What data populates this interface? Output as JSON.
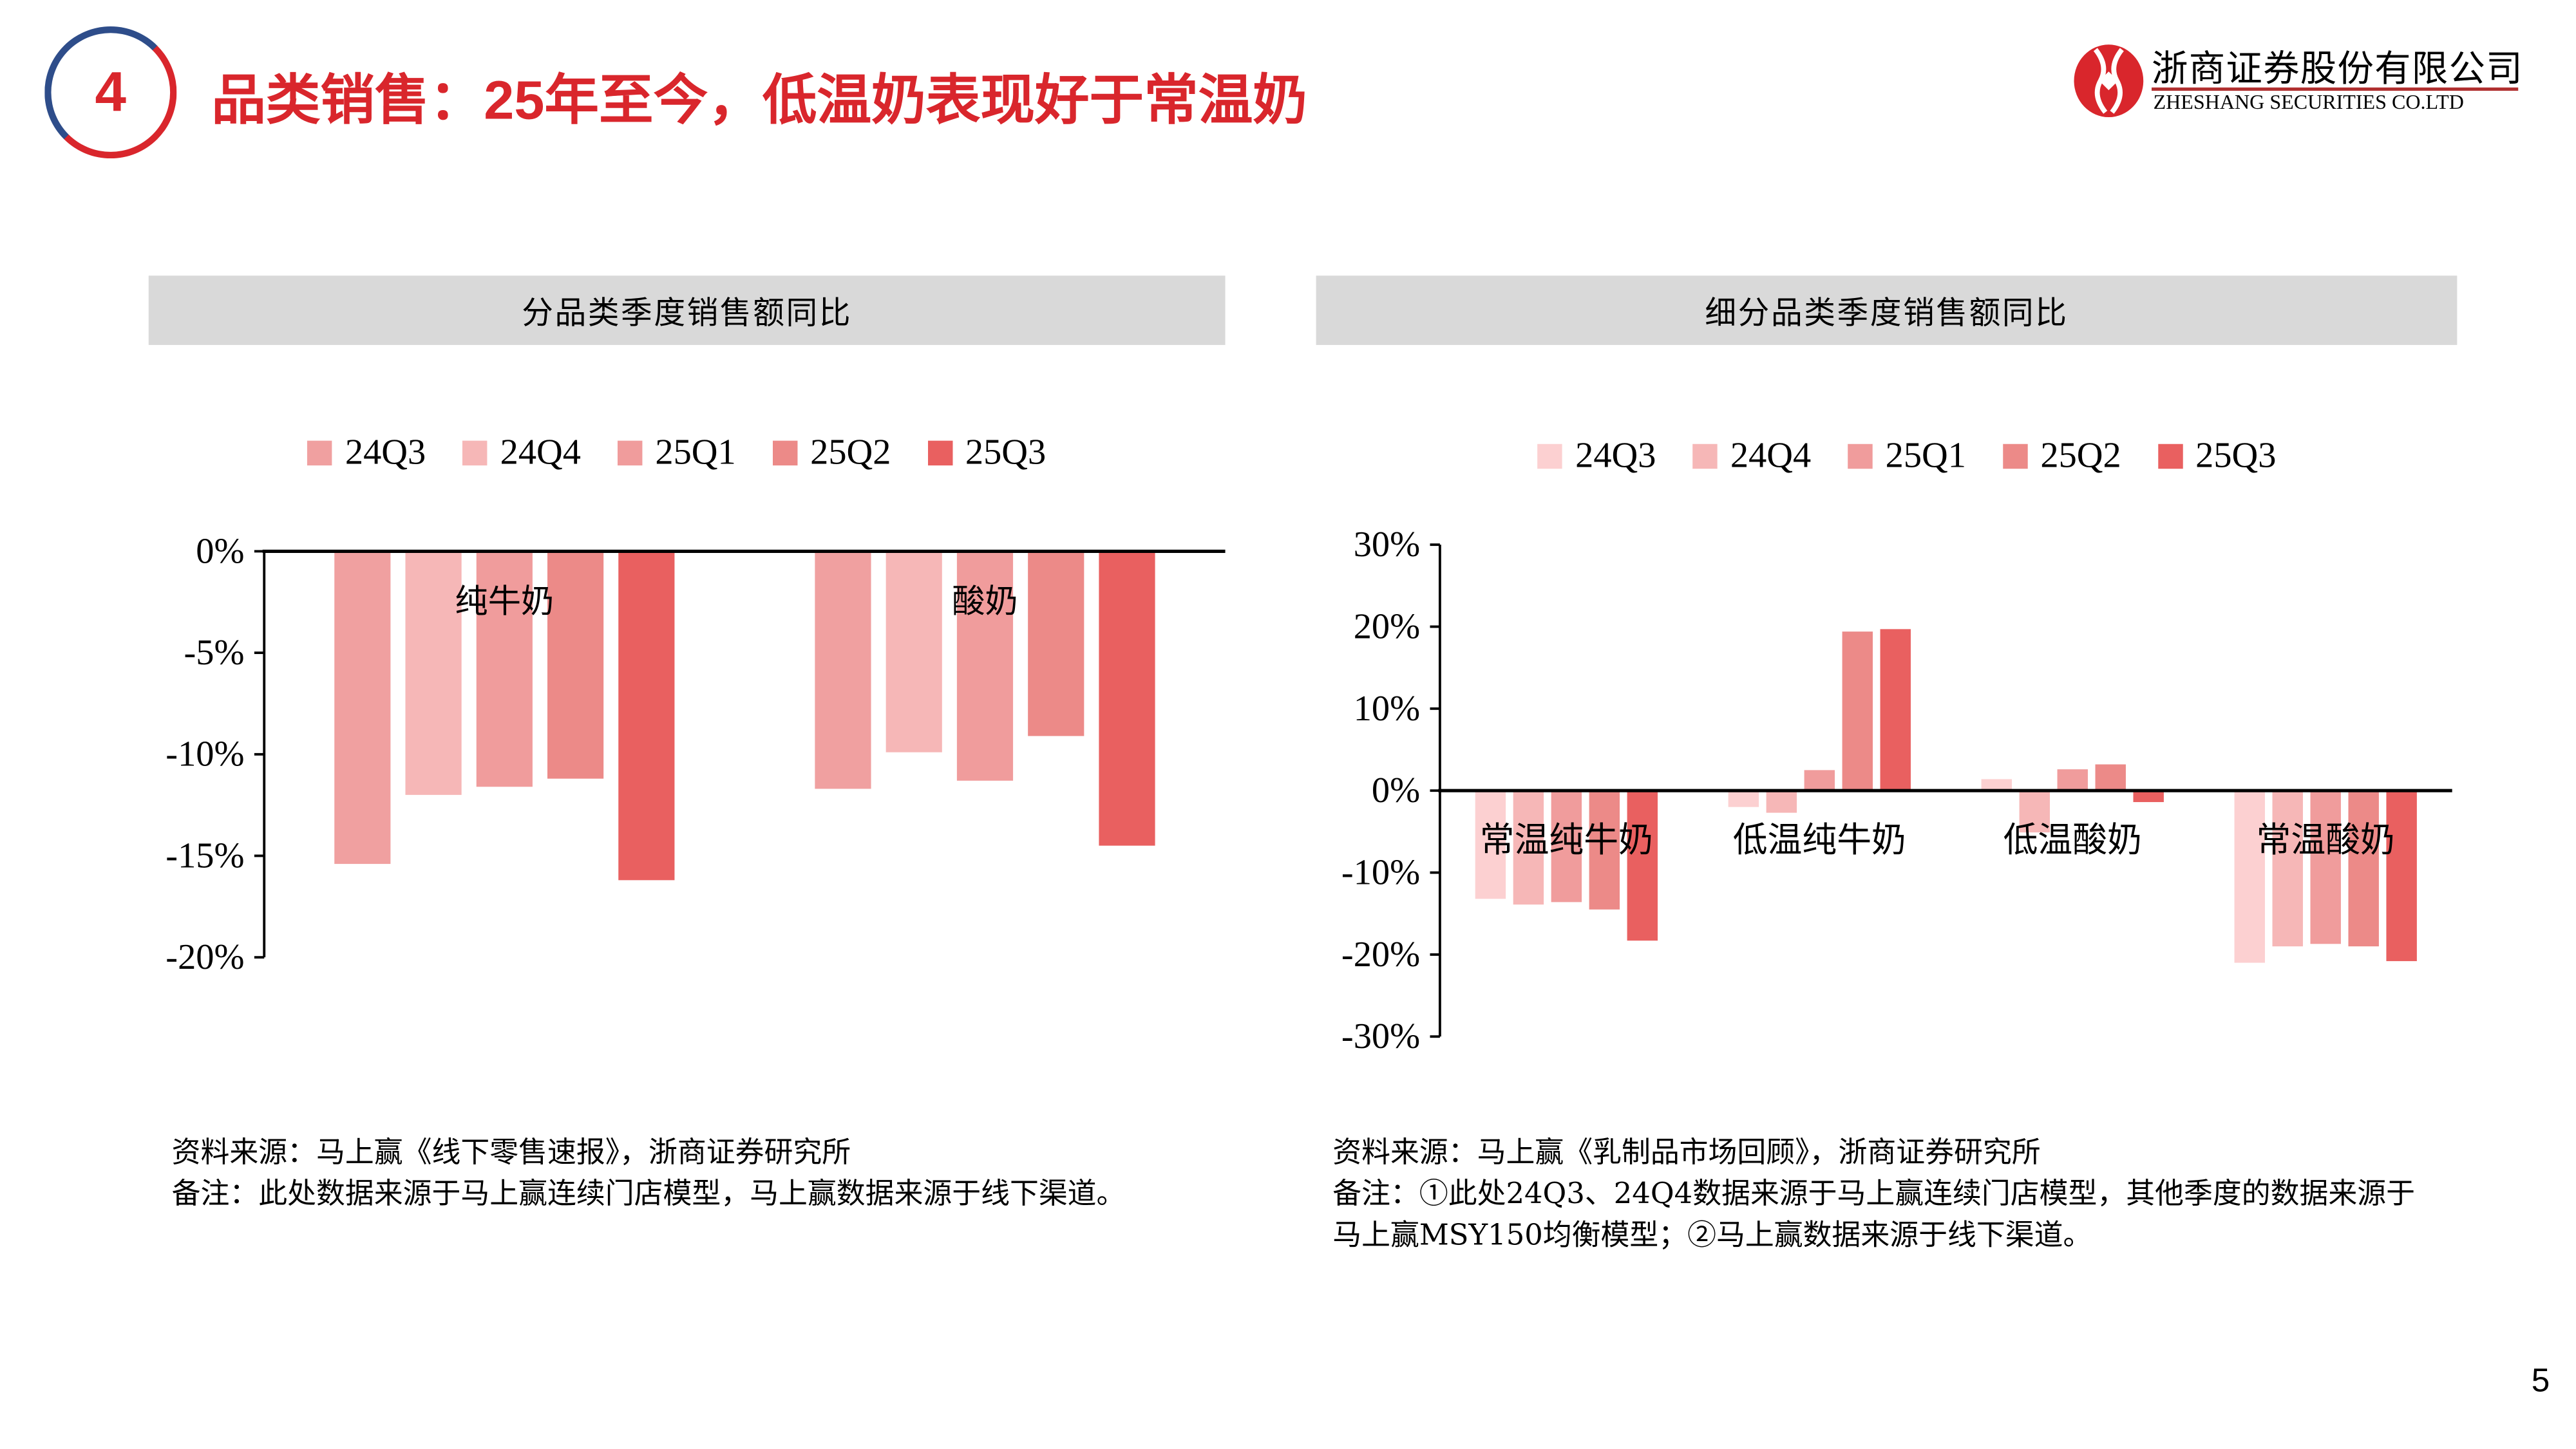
{
  "header": {
    "section_number": "4",
    "title": "品类销售：25年至今，低温奶表现好于常温奶",
    "logo_cn": "浙商证券股份有限公司",
    "logo_en": "ZHESHANG SECURITIES CO.LTD"
  },
  "colors": {
    "accent": "#d9262c",
    "navy": "#2e4d8a"
  },
  "chart_data": [
    {
      "type": "bar",
      "title": "分品类季度销售额同比",
      "categories": [
        "纯牛奶",
        "酸奶"
      ],
      "series": [
        {
          "name": "24Q3",
          "color": "#f0a0a0",
          "values": [
            -15.4,
            -11.7
          ]
        },
        {
          "name": "24Q4",
          "color": "#f6b7b7",
          "values": [
            -12.0,
            -9.9
          ]
        },
        {
          "name": "25Q1",
          "color": "#f09c9c",
          "values": [
            -11.6,
            -11.3
          ]
        },
        {
          "name": "25Q2",
          "color": "#ec8a88",
          "values": [
            -11.2,
            -9.1
          ]
        },
        {
          "name": "25Q3",
          "color": "#e96060",
          "values": [
            -16.2,
            -14.5
          ]
        }
      ],
      "yticks": [
        "0%",
        "-5%",
        "-10%",
        "-15%",
        "-20%"
      ],
      "ylim": [
        -20,
        0
      ],
      "unit": "%",
      "legend": "top",
      "grid": false
    },
    {
      "type": "bar",
      "title": "细分品类季度销售额同比",
      "categories": [
        "常温纯牛奶",
        "低温纯牛奶",
        "低温酸奶",
        "常温酸奶"
      ],
      "series": [
        {
          "name": "24Q3",
          "color": "#fcd0d1",
          "values": [
            -13.2,
            -2.0,
            1.4,
            -21.0
          ]
        },
        {
          "name": "24Q4",
          "color": "#f6b7b7",
          "values": [
            -13.9,
            -2.7,
            -5.1,
            -19.0
          ]
        },
        {
          "name": "25Q1",
          "color": "#f09c9c",
          "values": [
            -13.6,
            2.5,
            2.6,
            -18.7
          ]
        },
        {
          "name": "25Q2",
          "color": "#ec8a88",
          "values": [
            -14.5,
            19.4,
            3.2,
            -19.0
          ]
        },
        {
          "name": "25Q3",
          "color": "#e96060",
          "values": [
            -18.3,
            19.7,
            -1.4,
            -20.8
          ]
        }
      ],
      "yticks": [
        "30%",
        "20%",
        "10%",
        "0%",
        "-10%",
        "-20%",
        "-30%"
      ],
      "ylim": [
        -30,
        30
      ],
      "unit": "%",
      "legend": "top",
      "grid": false
    }
  ],
  "notes": {
    "left_source": "资料来源：马上赢《线下零售速报》，浙商证券研究所",
    "left_remark": "备注：此处数据来源于马上赢连续门店模型，马上赢数据来源于线下渠道。",
    "right_source": "资料来源：马上赢《乳制品市场回顾》，浙商证券研究所",
    "right_remark": "备注：①此处24Q3、24Q4数据来源于马上赢连续门店模型，其他季度的数据来源于马上赢MSY150均衡模型；②马上赢数据来源于线下渠道。"
  },
  "page_number": "5"
}
